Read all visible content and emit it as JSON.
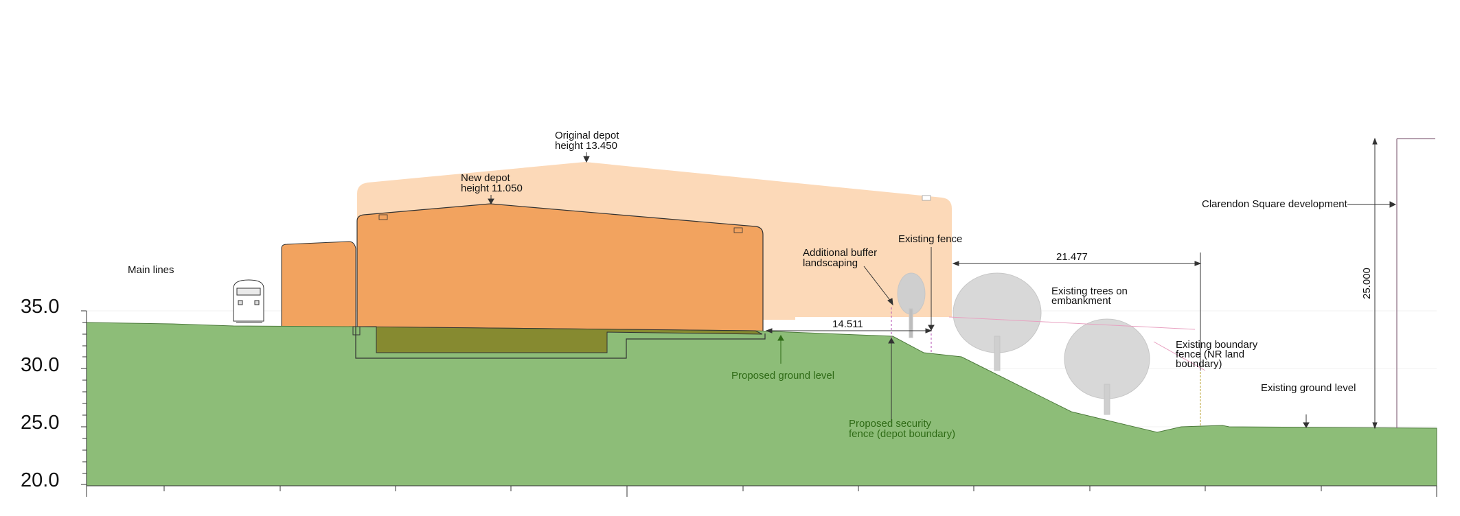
{
  "axis": {
    "ticks": [
      "35.0",
      "30.0",
      "25.0",
      "20.0"
    ]
  },
  "labels": {
    "main_lines": "Main lines",
    "original_depot_line1": "Original depot",
    "original_depot_line2": "height 13.450",
    "new_depot_line1": "New depot",
    "new_depot_line2": "height 11.050",
    "additional_buffer_line1": "Additional buffer",
    "additional_buffer_line2": "landscaping",
    "existing_fence": "Existing fence",
    "clarendon_square": "Clarendon Square development",
    "existing_trees_line1": "Existing trees on",
    "existing_trees_line2": "embankment",
    "existing_boundary_line1": "Existing boundary",
    "existing_boundary_line2": "fence (NR land",
    "existing_boundary_line3": "boundary)",
    "existing_ground_level": "Existing ground level",
    "proposed_ground_level": "Proposed ground level",
    "proposed_security_line1": "Proposed security",
    "proposed_security_line2": "fence (depot boundary)"
  },
  "dimensions": {
    "dim_21477": "21.477",
    "dim_14511": "14.511",
    "dim_25000": "25.000"
  },
  "colors": {
    "ground": "#8dbd78",
    "excavation": "#868a30",
    "original_depot": "#fcd9b8",
    "new_depot": "#f2a35f",
    "guide_line": "#e8a0c0",
    "tree": "#d8d8d8"
  }
}
